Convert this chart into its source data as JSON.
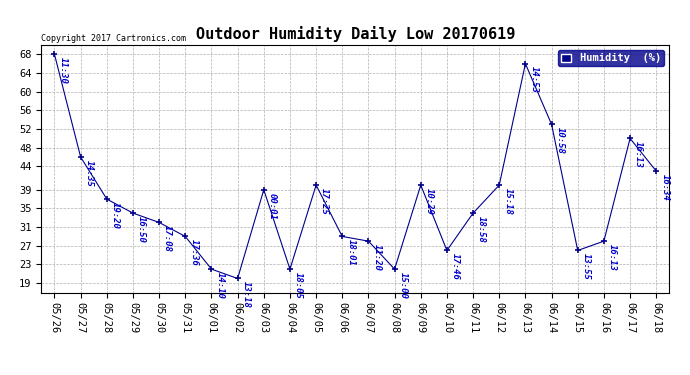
{
  "title": "Outdoor Humidity Daily Low 20170619",
  "copyright": "Copyright 2017 Cartronics.com",
  "legend_label": "Humidity  (%)",
  "x_labels": [
    "05/26",
    "05/27",
    "05/28",
    "05/29",
    "05/30",
    "05/31",
    "06/01",
    "06/02",
    "06/03",
    "06/04",
    "06/05",
    "06/06",
    "06/07",
    "06/08",
    "06/09",
    "06/10",
    "06/11",
    "06/12",
    "06/13",
    "06/14",
    "06/15",
    "06/16",
    "06/17",
    "06/18"
  ],
  "y_values": [
    68,
    46,
    37,
    34,
    32,
    29,
    22,
    20,
    39,
    22,
    40,
    29,
    28,
    22,
    40,
    26,
    34,
    40,
    66,
    53,
    26,
    28,
    50,
    43
  ],
  "time_labels": [
    "11:30",
    "14:35",
    "19:20",
    "16:50",
    "17:08",
    "17:36",
    "14:10",
    "13:18",
    "00:01",
    "18:05",
    "17:25",
    "18:01",
    "11:20",
    "15:00",
    "10:29",
    "17:46",
    "18:58",
    "15:18",
    "14:53",
    "10:58",
    "13:55",
    "16:13",
    "16:13",
    "16:34"
  ],
  "line_color": "#00008B",
  "marker_color": "#00008B",
  "bg_color": "#ffffff",
  "grid_color": "#b0b0b0",
  "label_color": "#0000CD",
  "y_ticks": [
    19,
    23,
    27,
    31,
    35,
    39,
    44,
    48,
    52,
    56,
    60,
    64,
    68
  ],
  "ylim": [
    17,
    70
  ],
  "title_fontsize": 11,
  "tick_fontsize": 7.5,
  "label_fontsize": 6.5
}
